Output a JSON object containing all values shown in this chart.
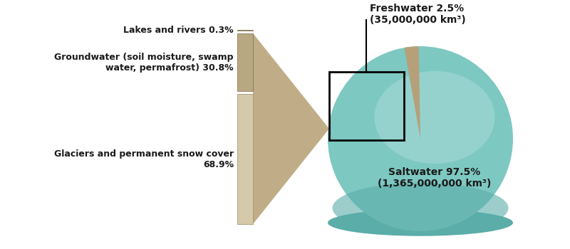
{
  "saltwater_label": "Saltwater 97.5%\n(1,365,000,000 km³)",
  "freshwater_label": "Freshwater 2.5%\n(35,000,000 km³)",
  "bar_glaciers_pct": 68.9,
  "bar_groundwater_pct": 30.8,
  "bar_lakes_pct": 0.3,
  "glaciers_label": "Glaciers and permanent snow cover\n68.9%",
  "groundwater_label": "Groundwater (soil moisture, swamp\nwater, permafrost) 30.8%",
  "lakes_label": "Lakes and rivers 0.3%",
  "color_saltwater_main": "#7ec8c2",
  "color_saltwater_light": "#a8dbd8",
  "color_saltwater_dark": "#5aada8",
  "color_saltwater_rim": "#4a9a96",
  "color_freshwater_wedge": "#b5a07a",
  "color_bar_glaciers": "#d4c9a8",
  "color_bar_groundwater": "#b8a882",
  "color_bar_lakes": "#9a8a62",
  "color_arrow": "#c0ad88",
  "color_black": "#000000",
  "color_white": "#ffffff",
  "background_color": "#ffffff",
  "text_color": "#1a1a1a",
  "font_size": 9,
  "label_fontsize": 10
}
